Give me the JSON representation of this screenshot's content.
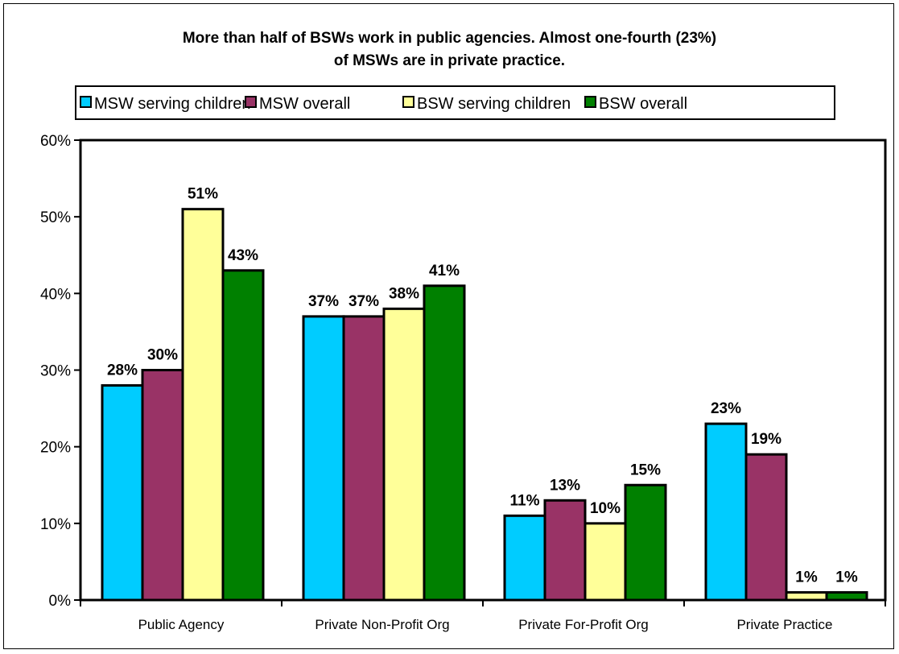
{
  "chart_data": {
    "type": "bar",
    "title_lines": [
      "More than half of BSWs work in public agencies. Almost one-fourth (23%)",
      "of MSWs are in private practice."
    ],
    "categories": [
      "Public Agency",
      "Private Non-Profit Org",
      "Private For-Profit Org",
      "Private Practice"
    ],
    "series": [
      {
        "name": "MSW serving children",
        "color": "#00ccff",
        "values": [
          28,
          37,
          11,
          23
        ],
        "labels": [
          "28%",
          "37%",
          "11%",
          "23%"
        ]
      },
      {
        "name": "MSW overall",
        "color": "#993366",
        "values": [
          30,
          37,
          13,
          19
        ],
        "labels": [
          "30%",
          "37%",
          "13%",
          "19%"
        ]
      },
      {
        "name": "BSW serving children",
        "color": "#ffff99",
        "values": [
          51,
          38,
          10,
          1
        ],
        "labels": [
          "51%",
          "38%",
          "10%",
          "1%"
        ]
      },
      {
        "name": "BSW overall",
        "color": "#008000",
        "values": [
          43,
          41,
          15,
          1
        ],
        "labels": [
          "43%",
          "41%",
          "15%",
          "1%"
        ]
      }
    ],
    "ylim": [
      0,
      60
    ],
    "yticks": [
      "0%",
      "10%",
      "20%",
      "30%",
      "40%",
      "50%",
      "60%"
    ],
    "xlabel": "",
    "ylabel": "",
    "legend_position": "top",
    "grid": false
  }
}
